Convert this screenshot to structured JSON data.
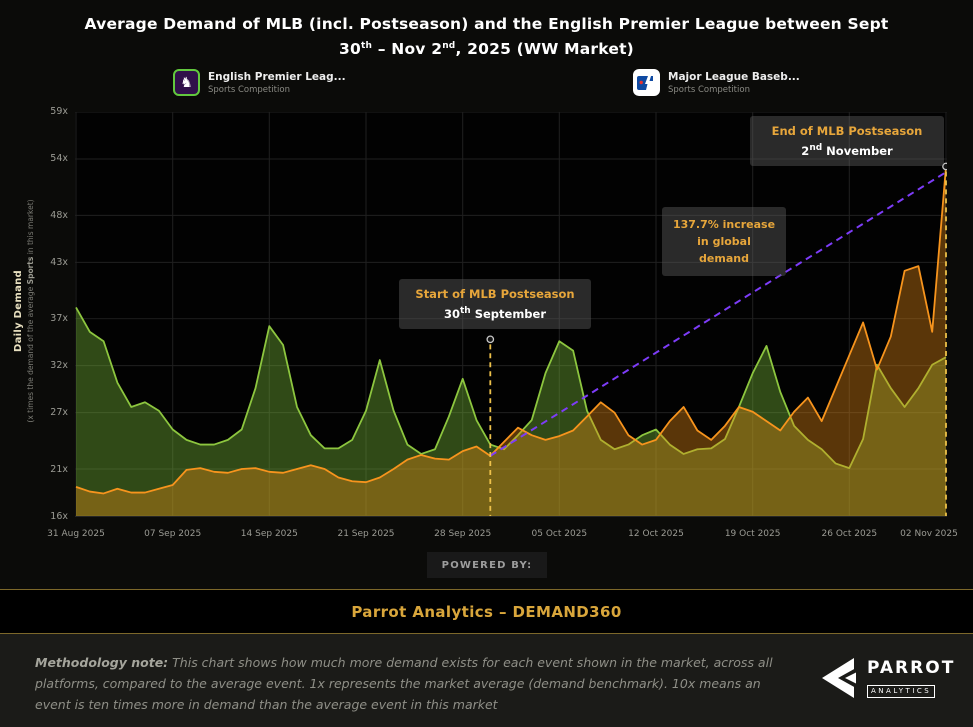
{
  "title": {
    "line1": "Average Demand of MLB (incl. Postseason) and the English Premier League between Sept",
    "line2_p1": "30",
    "line2_sup1": "th",
    "line2_p2": " – Nov 2",
    "line2_sup2": "nd",
    "line2_p3": ", 2025 (WW Market)"
  },
  "legend": [
    {
      "name": "English Premier Leag...",
      "type": "Sports Competition",
      "icon": "premier-league-logo"
    },
    {
      "name": "Major League Baseb...",
      "type": "Sports Competition",
      "icon": "mlb-logo"
    }
  ],
  "y_axis": {
    "title": "Daily Demand",
    "subtitle_prefix": "(x times the demand of the average ",
    "subtitle_bold": "Sports",
    "subtitle_suffix": " in this market)"
  },
  "chart_data": {
    "type": "area",
    "title": "Average Demand of MLB (incl. Postseason) and the English Premier League between Sept 30th – Nov 2nd, 2025 (WW Market)",
    "ylabel": "Daily Demand (x times the demand of the average Sports in this market)",
    "ylim": [
      16,
      59
    ],
    "grid": true,
    "legend_position": "top",
    "x_start_date": "31 Aug 2025",
    "x_end_date": "02 Nov 2025",
    "x_tick_labels": [
      "31 Aug 2025",
      "07 Sep 2025",
      "14 Sep 2025",
      "21 Sep 2025",
      "28 Sep 2025",
      "05 Oct 2025",
      "12 Oct 2025",
      "19 Oct 2025",
      "26 Oct 2025",
      "02 Nov 2025"
    ],
    "week_indices": [
      0,
      7,
      14,
      21,
      28,
      35,
      42,
      49,
      56,
      63
    ],
    "y_tick_labels": [
      "59x",
      "54x",
      "48x",
      "43x",
      "37x",
      "32x",
      "27x",
      "21x",
      "16x"
    ],
    "y_tick_values": [
      59,
      54,
      48,
      43,
      37,
      32,
      27,
      21,
      16
    ],
    "series": [
      {
        "name": "English Premier League",
        "color": "#8dc63f",
        "fill": "rgba(124,193,58,0.38)",
        "values": [
          38.2,
          35.6,
          34.6,
          30.2,
          27.6,
          28.1,
          27.2,
          25.2,
          24.1,
          23.6,
          23.6,
          24.1,
          25.2,
          29.6,
          36.2,
          34.2,
          27.6,
          24.6,
          23.2,
          23.2,
          24.1,
          27.2,
          32.6,
          27.2,
          23.6,
          22.6,
          23.1,
          26.6,
          30.6,
          26.2,
          23.6,
          23.1,
          24.6,
          26.2,
          31.2,
          34.6,
          33.6,
          27.2,
          24.1,
          23.1,
          23.6,
          24.6,
          25.2,
          23.6,
          22.6,
          23.1,
          23.2,
          24.2,
          27.6,
          31.2,
          34.1,
          29.2,
          25.6,
          24.1,
          23.1,
          21.6,
          21.1,
          24.2,
          32.1,
          29.6,
          27.6,
          29.6,
          32.1,
          32.9
        ]
      },
      {
        "name": "Major League Baseball (incl. Postseason)",
        "color": "#f7941d",
        "fill": "rgba(235,140,20,0.38)",
        "values": [
          19.1,
          18.6,
          18.4,
          18.9,
          18.5,
          18.5,
          18.9,
          19.3,
          20.9,
          21.1,
          20.7,
          20.6,
          21.0,
          21.1,
          20.7,
          20.6,
          21.0,
          21.4,
          21.0,
          20.1,
          19.7,
          19.6,
          20.1,
          21.0,
          22.0,
          22.5,
          22.1,
          22.0,
          22.9,
          23.4,
          22.4,
          23.9,
          25.4,
          24.6,
          24.1,
          24.5,
          25.1,
          26.6,
          28.1,
          27.0,
          24.6,
          23.6,
          24.1,
          26.1,
          27.6,
          25.1,
          24.1,
          25.6,
          27.6,
          27.1,
          26.1,
          25.1,
          27.1,
          28.6,
          26.1,
          29.6,
          33.1,
          36.6,
          31.6,
          35.1,
          42.1,
          42.6,
          35.6,
          53.2
        ]
      }
    ]
  },
  "annotations": {
    "start_marker": {
      "day_index": 30,
      "line_top_value": 34.8,
      "title": "Start of MLB Postseason",
      "date_p1": "30",
      "date_sup": "th",
      "date_p2": " September"
    },
    "end_marker": {
      "day_index": 63,
      "line_top_value": 53.2,
      "title": "End of MLB Postseason",
      "date_p1": "2",
      "date_sup": "nd",
      "date_p2": " November"
    },
    "increase_label": {
      "line1": "137.7% increase",
      "line2": "in global",
      "line3": "demand"
    },
    "trend_line": {
      "from_day": 30,
      "from_value": 22.4,
      "to_day": 63,
      "to_value": 52.6
    }
  },
  "powered_by": "POWERED BY:",
  "banner_text": "Parrot Analytics – DEMAND360",
  "methodology": {
    "label": "Methodology note:",
    "text": " This chart shows how much more demand exists for each event shown in the market, across all platforms, compared to the average event. 1x represents the market average (demand benchmark). 10x means an event is ten times more in demand than the average event in this market"
  },
  "logo": {
    "name": "PARROT",
    "sub": "ANALYTICS"
  },
  "colors": {
    "gold": "#edc14a",
    "gold_text": "#e7a63b",
    "purple": "#7d3cf8",
    "epl_green": "#8dc63f",
    "mlb_orange": "#f7941d"
  }
}
